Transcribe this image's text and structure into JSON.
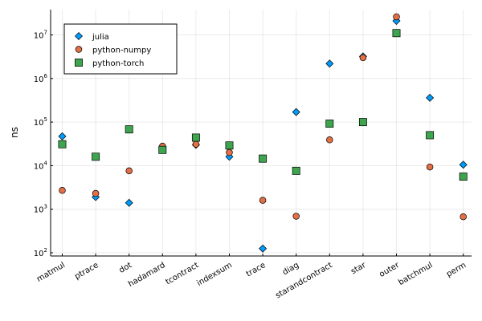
{
  "chart_data": {
    "type": "scatter",
    "title": "",
    "xlabel": "",
    "ylabel": "ns",
    "yscale": "log10",
    "ylim": [
      80,
      40000000
    ],
    "grid": true,
    "legend_position": "top-left",
    "categories": [
      "matmul",
      "ptrace",
      "dot",
      "hadamard",
      "tcontract",
      "indexsum",
      "trace",
      "diag",
      "starandcontract",
      "star",
      "outer",
      "batchmul",
      "perm"
    ],
    "yticks": [
      100,
      1000,
      10000,
      100000,
      1000000,
      10000000
    ],
    "series": [
      {
        "name": "julia",
        "marker": "diamond",
        "color": "#009AFA",
        "values": [
          47000,
          1900,
          1400,
          25000,
          30000,
          16000,
          125,
          170000,
          2200000,
          3200000,
          21000000,
          360000,
          10500
        ]
      },
      {
        "name": "python-numpy",
        "marker": "circle",
        "color": "#E36F47",
        "values": [
          2700,
          2300,
          7600,
          28000,
          31000,
          20000,
          1600,
          690,
          39000,
          3000000,
          26000000,
          9300,
          670
        ]
      },
      {
        "name": "python-torch",
        "marker": "square",
        "color": "#3EA44E",
        "values": [
          31000,
          16000,
          68000,
          23000,
          44000,
          29000,
          14500,
          7600,
          92000,
          100000,
          11000000,
          50000,
          5600
        ]
      }
    ]
  }
}
